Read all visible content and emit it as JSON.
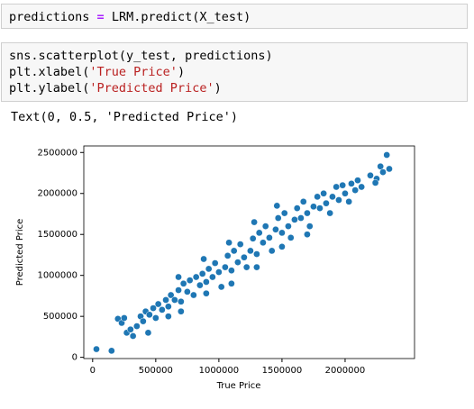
{
  "cells": [
    {
      "lines": [
        [
          "predictions ",
          "=",
          " LRM.predict(X_test)"
        ]
      ]
    },
    {
      "lines": [
        [
          "sns.scatterplot(y_test, predictions)"
        ],
        [
          "plt.xlabel(",
          "'True Price'",
          ")"
        ],
        [
          "plt.ylabel(",
          "'Predicted Price'",
          ")"
        ]
      ]
    }
  ],
  "output": "Text(0, 0.5, 'Predicted Price')",
  "chart_data": {
    "type": "scatter",
    "xlabel": "True Price",
    "ylabel": "Predicted Price",
    "color": "#1f77b4",
    "xlim": [
      -70000,
      2550000
    ],
    "ylim": [
      -15000,
      2580000
    ],
    "xticks": [
      0,
      500000,
      1000000,
      1500000,
      2000000
    ],
    "yticks": [
      0,
      500000,
      1000000,
      1500000,
      2000000,
      2500000
    ],
    "x": [
      30000,
      150000,
      200000,
      230000,
      250000,
      270000,
      300000,
      320000,
      350000,
      380000,
      400000,
      420000,
      450000,
      480000,
      500000,
      520000,
      550000,
      580000,
      600000,
      620000,
      650000,
      680000,
      700000,
      720000,
      750000,
      770000,
      800000,
      820000,
      850000,
      870000,
      900000,
      920000,
      950000,
      970000,
      1000000,
      1020000,
      1050000,
      1070000,
      1100000,
      1120000,
      1150000,
      1170000,
      1200000,
      1220000,
      1250000,
      1270000,
      1300000,
      1320000,
      1350000,
      1370000,
      1400000,
      1420000,
      1450000,
      1470000,
      1500000,
      1520000,
      1550000,
      1570000,
      1600000,
      1620000,
      1650000,
      1670000,
      1700000,
      1720000,
      1750000,
      1780000,
      1800000,
      1830000,
      1850000,
      1880000,
      1900000,
      1930000,
      1950000,
      1980000,
      2000000,
      2030000,
      2050000,
      2080000,
      2100000,
      2130000,
      2200000,
      2250000,
      2280000,
      2300000,
      2330000,
      2350000,
      2240000,
      600000,
      700000,
      900000,
      1100000,
      1300000,
      1500000,
      1700000,
      440000,
      680000,
      880000,
      1080000,
      1280000,
      1460000
    ],
    "y": [
      100000,
      80000,
      470000,
      420000,
      480000,
      300000,
      340000,
      260000,
      380000,
      500000,
      440000,
      560000,
      520000,
      600000,
      480000,
      650000,
      580000,
      700000,
      620000,
      760000,
      700000,
      820000,
      680000,
      900000,
      800000,
      940000,
      760000,
      980000,
      880000,
      1020000,
      920000,
      1080000,
      980000,
      1150000,
      1040000,
      860000,
      1100000,
      1240000,
      1060000,
      1300000,
      1160000,
      1380000,
      1220000,
      1100000,
      1300000,
      1450000,
      1260000,
      1520000,
      1400000,
      1600000,
      1460000,
      1300000,
      1560000,
      1700000,
      1520000,
      1760000,
      1600000,
      1460000,
      1680000,
      1820000,
      1700000,
      1900000,
      1760000,
      1600000,
      1840000,
      1960000,
      1820000,
      2000000,
      1880000,
      1760000,
      1960000,
      2080000,
      1920000,
      2100000,
      2000000,
      1900000,
      2120000,
      2040000,
      2160000,
      2080000,
      2220000,
      2180000,
      2330000,
      2260000,
      2470000,
      2300000,
      2130000,
      500000,
      560000,
      780000,
      900000,
      1100000,
      1350000,
      1500000,
      300000,
      980000,
      1200000,
      1400000,
      1650000,
      1850000
    ]
  }
}
